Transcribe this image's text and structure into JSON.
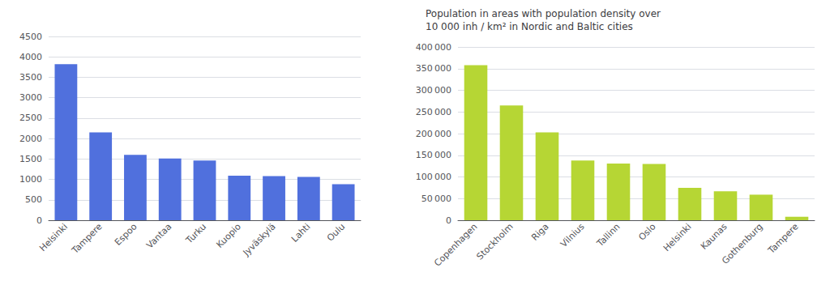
{
  "chart_data": [
    {
      "type": "bar",
      "categories": [
        "Helsinki",
        "Tampere",
        "Espoo",
        "Vantaa",
        "Turku",
        "Kuopio",
        "Jyväskylä",
        "Lahti",
        "Oulu"
      ],
      "values": [
        3820,
        2150,
        1600,
        1510,
        1460,
        1090,
        1080,
        1060,
        880
      ],
      "ylim": [
        0,
        4500
      ],
      "yticks": [
        0,
        500,
        1000,
        1500,
        2000,
        2500,
        3000,
        3500,
        4000,
        4500
      ],
      "grid": true
    },
    {
      "type": "bar",
      "title": "Population in areas with population density over\n10 000 inh / km² in Nordic and Baltic cities",
      "categories": [
        "Copenhagen",
        "Stockholm",
        "Riga",
        "Vilnius",
        "Tallinn",
        "Oslo",
        "Helsinki",
        "Kaunas",
        "Gothenburg",
        "Tampere"
      ],
      "values": [
        358000,
        265000,
        203000,
        138000,
        131000,
        130000,
        75000,
        67000,
        59000,
        8000
      ],
      "ylim": [
        0,
        400000
      ],
      "yticks": [
        0,
        {
          "value": 50000,
          "label": "50 000"
        },
        {
          "value": 100000,
          "label": "100 000"
        },
        {
          "value": 150000,
          "label": "150 000"
        },
        {
          "value": 200000,
          "label": "200 000"
        },
        {
          "value": 250000,
          "label": "250 000"
        },
        {
          "value": 300000,
          "label": "300 000"
        },
        {
          "value": 350000,
          "label": "350 000"
        },
        {
          "value": 400000,
          "label": "400 000"
        }
      ],
      "grid": true
    }
  ]
}
